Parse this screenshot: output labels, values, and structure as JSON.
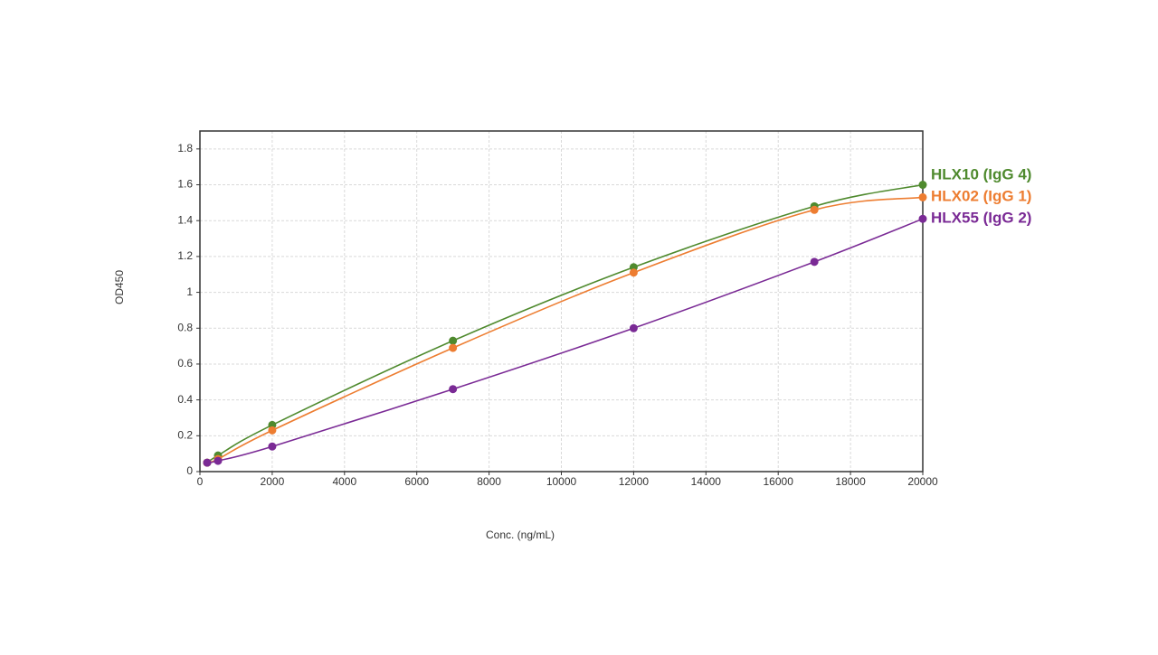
{
  "chart_data": {
    "type": "line",
    "x_label": "Conc. (ng/mL)",
    "y_label": "OD450",
    "x": [
      200,
      500,
      2000,
      7000,
      12000,
      17000,
      20000
    ],
    "series": [
      {
        "name": "HLX10 (IgG 4)",
        "color": "#4f8a2e",
        "values": [
          0.05,
          0.09,
          0.26,
          0.73,
          1.14,
          1.48,
          1.6
        ]
      },
      {
        "name": "HLX02 (IgG 1)",
        "color": "#ed7d31",
        "values": [
          0.05,
          0.07,
          0.23,
          0.69,
          1.11,
          1.46,
          1.53
        ]
      },
      {
        "name": "HLX55 (IgG 2)",
        "color": "#7a2a95",
        "values": [
          0.05,
          0.06,
          0.14,
          0.46,
          0.8,
          1.17,
          1.41
        ]
      }
    ],
    "xlim": [
      0,
      20000
    ],
    "ylim": [
      0,
      1.9
    ],
    "xticks": [
      0,
      2000,
      4000,
      6000,
      8000,
      10000,
      12000,
      14000,
      16000,
      18000,
      20000
    ],
    "yticks": [
      0,
      0.2,
      0.4,
      0.6,
      0.8,
      1,
      1.2,
      1.4,
      1.6,
      1.8
    ],
    "grid": true
  }
}
